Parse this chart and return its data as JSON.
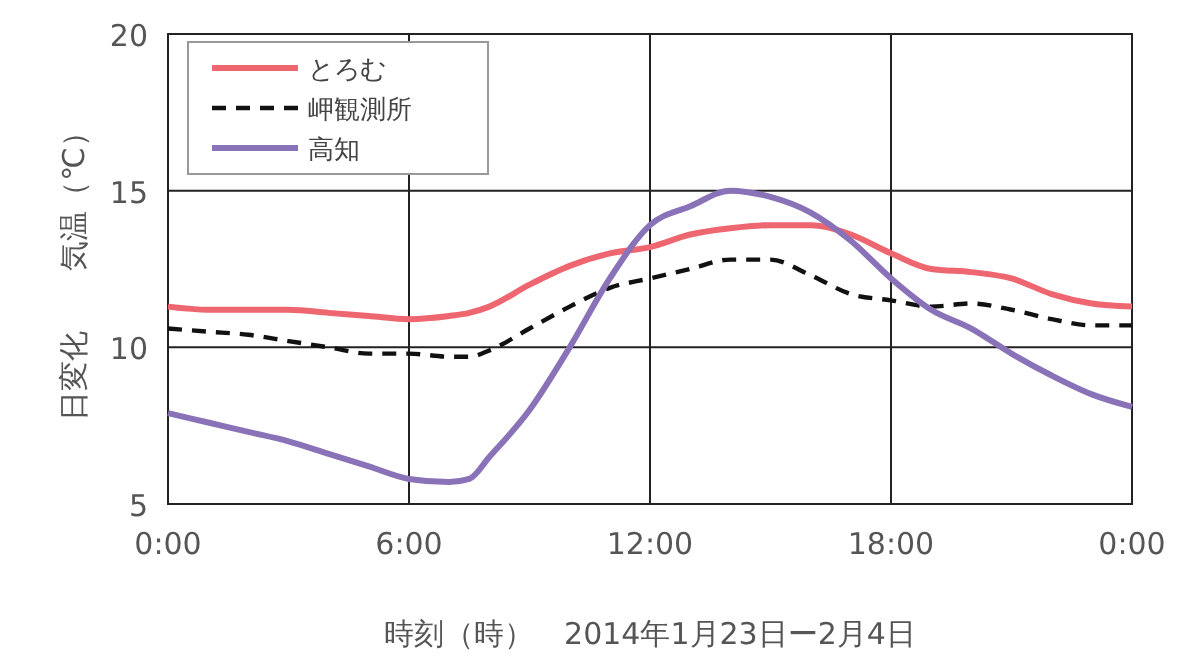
{
  "chart_data": {
    "type": "line",
    "xlabel": "時刻（時）　2014年1月23日ー2月4日",
    "ylabel": "日変化　　気温（℃）",
    "xlim": [
      0,
      24
    ],
    "xticks": [
      {
        "value": 0,
        "label": "0:00"
      },
      {
        "value": 6,
        "label": "6:00"
      },
      {
        "value": 12,
        "label": "12:00"
      },
      {
        "value": 18,
        "label": "18:00"
      },
      {
        "value": 24,
        "label": "0:00"
      }
    ],
    "ylim": [
      5,
      20
    ],
    "yticks": [
      5,
      10,
      15,
      20
    ],
    "grid": true,
    "legend": "top left",
    "series": [
      {
        "name": "とろむ",
        "color": "#ee6670",
        "line_style": "solid",
        "x": [
          0,
          1,
          2,
          3,
          4,
          5,
          6,
          7,
          7.5,
          8,
          9,
          10,
          11,
          12,
          13,
          14,
          15,
          16,
          17,
          18,
          19,
          20,
          21,
          22,
          23,
          24
        ],
        "values": [
          11.3,
          11.2,
          11.2,
          11.2,
          11.1,
          11.0,
          10.9,
          11.0,
          11.1,
          11.3,
          12.0,
          12.6,
          13.0,
          13.2,
          13.6,
          13.8,
          13.9,
          13.9,
          13.6,
          13.0,
          12.5,
          12.4,
          12.2,
          11.7,
          11.4,
          11.3
        ]
      },
      {
        "name": "岬観測所",
        "color": "#111111",
        "line_style": "dashed",
        "x": [
          0,
          1,
          2,
          3,
          4,
          5,
          6,
          7,
          7.5,
          8,
          9,
          10,
          11,
          12,
          13,
          14,
          15,
          16,
          17,
          18,
          19,
          20,
          21,
          22,
          23,
          24
        ],
        "values": [
          10.6,
          10.5,
          10.4,
          10.2,
          10.0,
          9.8,
          9.8,
          9.7,
          9.7,
          9.9,
          10.6,
          11.3,
          11.9,
          12.2,
          12.5,
          12.8,
          12.8,
          12.3,
          11.7,
          11.5,
          11.3,
          11.4,
          11.2,
          10.9,
          10.7,
          10.7
        ]
      },
      {
        "name": "高知",
        "color": "#8a72b8",
        "line_style": "solid",
        "x": [
          0,
          1,
          2,
          3,
          4,
          5,
          6,
          7,
          7.5,
          8,
          9,
          10,
          11,
          12,
          13,
          14,
          15,
          16,
          17,
          18,
          19,
          20,
          21,
          22,
          23,
          24
        ],
        "values": [
          7.9,
          7.6,
          7.3,
          7.0,
          6.6,
          6.2,
          5.8,
          5.7,
          5.8,
          6.5,
          8.0,
          10.0,
          12.2,
          13.9,
          14.5,
          15.0,
          14.8,
          14.3,
          13.4,
          12.2,
          11.2,
          10.6,
          9.8,
          9.1,
          8.5,
          8.1
        ]
      }
    ]
  }
}
